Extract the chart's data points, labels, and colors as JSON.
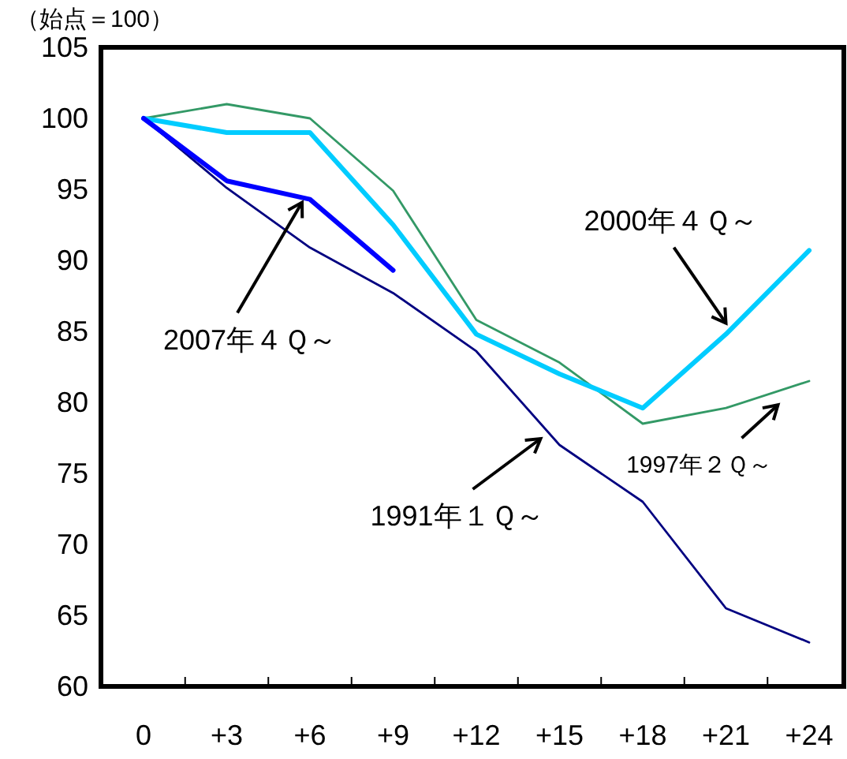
{
  "chart_data": {
    "type": "line",
    "ylabel": "（始点＝100）",
    "categories": [
      "0",
      "+3",
      "+6",
      "+9",
      "+12",
      "+15",
      "+18",
      "+21",
      "+24"
    ],
    "series": [
      {
        "name": "1991年１Ｑ～",
        "color": "#000080",
        "values": [
          100,
          95.1,
          90.9,
          87.7,
          83.6,
          77.0,
          73.0,
          65.5,
          63.1
        ]
      },
      {
        "name": "1997年２Ｑ～",
        "color": "#339966",
        "values": [
          100,
          101.0,
          100.0,
          94.9,
          85.8,
          82.8,
          78.5,
          79.6,
          81.5
        ]
      },
      {
        "name": "2000年４Ｑ～",
        "color": "#00ccff",
        "values": [
          100,
          99.0,
          99.0,
          92.5,
          84.8,
          82.0,
          79.6,
          84.8,
          90.7
        ]
      },
      {
        "name": "2007年４Ｑ～",
        "color": "#0000ff",
        "values": [
          100,
          95.6,
          94.3,
          89.3,
          null,
          null,
          null,
          null,
          null
        ]
      }
    ],
    "ylim": [
      60,
      105
    ],
    "yticks": [
      60,
      65,
      70,
      75,
      80,
      85,
      90,
      95,
      100,
      105
    ],
    "grid": false,
    "legend": false,
    "marker": "none",
    "line_style": "solid"
  }
}
